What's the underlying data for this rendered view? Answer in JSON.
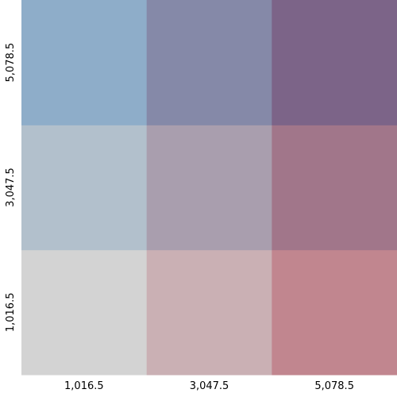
{
  "chart_data": {
    "type": "heatmap",
    "title": "",
    "xlabel": "",
    "ylabel": "",
    "x_tick_labels": [
      "1,016.5",
      "3,047.5",
      "5,078.5"
    ],
    "y_tick_labels": [
      "1,016.5",
      "3,047.5",
      "5,078.5"
    ],
    "y_order": "bottom-to-top",
    "cells": [
      [
        "#d3d3d3",
        "#cab0b4",
        "#c1868f"
      ],
      [
        "#b2c0cc",
        "#a99eae",
        "#a1768a"
      ],
      [
        "#8eadc9",
        "#8589a8",
        "#7c6488"
      ]
    ],
    "legend": "none",
    "grid": false
  }
}
